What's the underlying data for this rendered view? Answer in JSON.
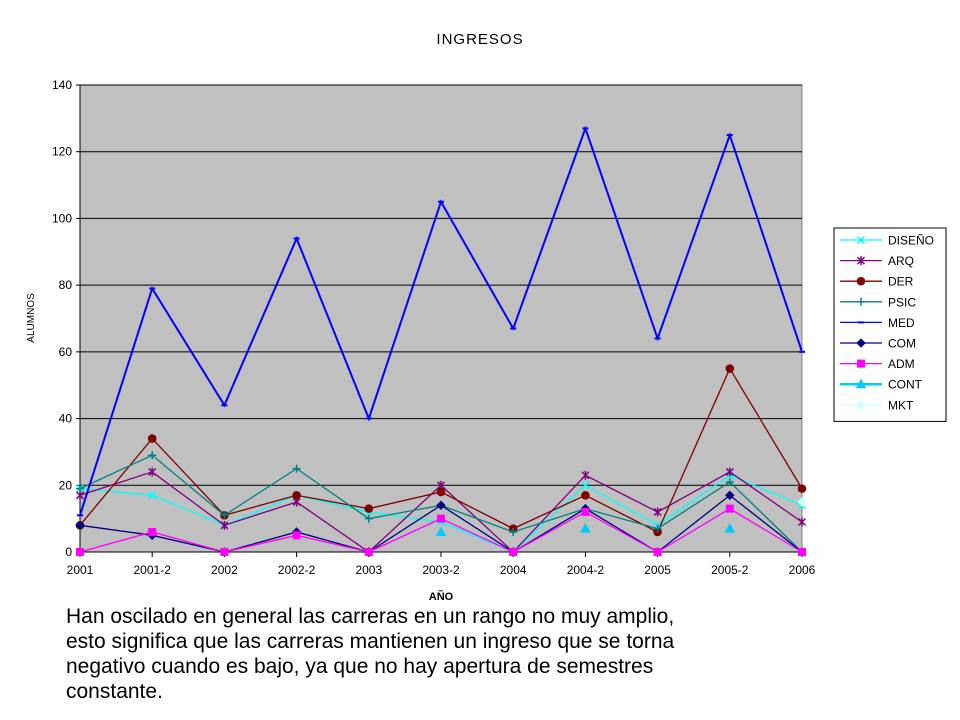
{
  "chart_data": {
    "type": "line",
    "title": "INGRESOS",
    "xlabel": "AÑO",
    "ylabel": "ALUMNOS",
    "ylim": [
      0,
      140
    ],
    "yticks": [
      0,
      20,
      40,
      60,
      80,
      100,
      120,
      140
    ],
    "grid": true,
    "legend_position": "right",
    "plot_background": "#c0c0c0",
    "categories": [
      "2001",
      "2001-2",
      "2002",
      "2002-2",
      "2003",
      "2003-2",
      "2004",
      "2004-2",
      "2005",
      "2005-2",
      "2006"
    ],
    "series": [
      {
        "name": "DISEÑO",
        "color": "#00ffff",
        "marker": "x",
        "values": [
          19,
          17,
          8,
          17,
          12,
          9,
          0,
          20,
          8,
          23,
          14
        ]
      },
      {
        "name": "ARQ",
        "color": "#800080",
        "marker": "star",
        "values": [
          17,
          24,
          8,
          15,
          0,
          20,
          0,
          23,
          12,
          24,
          9
        ]
      },
      {
        "name": "DER",
        "color": "#800000",
        "marker": "circle",
        "values": [
          8,
          34,
          11,
          17,
          13,
          18,
          7,
          17,
          6,
          55,
          19
        ]
      },
      {
        "name": "PSIC",
        "color": "#008080",
        "marker": "plus",
        "values": [
          19,
          29,
          11,
          25,
          10,
          14,
          6,
          13,
          7,
          21,
          0
        ]
      },
      {
        "name": "MED",
        "color": "#0000ff",
        "marker": "dash",
        "values": [
          11,
          79,
          44,
          94,
          40,
          105,
          67,
          127,
          64,
          125,
          60
        ]
      },
      {
        "name": "COM",
        "color": "#000080",
        "marker": "diamond",
        "values": [
          8,
          5,
          0,
          6,
          0,
          14,
          0,
          13,
          0,
          17,
          0
        ]
      },
      {
        "name": "ADM",
        "color": "#ff00ff",
        "marker": "square",
        "values": [
          0,
          6,
          0,
          5,
          0,
          10,
          0,
          12,
          0,
          13,
          0
        ]
      },
      {
        "name": "CONT",
        "color": "#00ccff",
        "marker": "triangle",
        "values": [
          null,
          null,
          null,
          null,
          null,
          6,
          null,
          7,
          null,
          7,
          null
        ]
      },
      {
        "name": "MKT",
        "color": "#ccffff",
        "marker": "diamond",
        "values": [
          null,
          null,
          null,
          null,
          null,
          null,
          null,
          null,
          null,
          null,
          15
        ]
      }
    ]
  },
  "caption": [
    "Han oscilado en general las carreras en un rango no muy amplio,",
    "esto significa que las carreras mantienen un ingreso que se torna",
    "negativo cuando es bajo, ya que no hay apertura de semestres",
    "constante."
  ]
}
